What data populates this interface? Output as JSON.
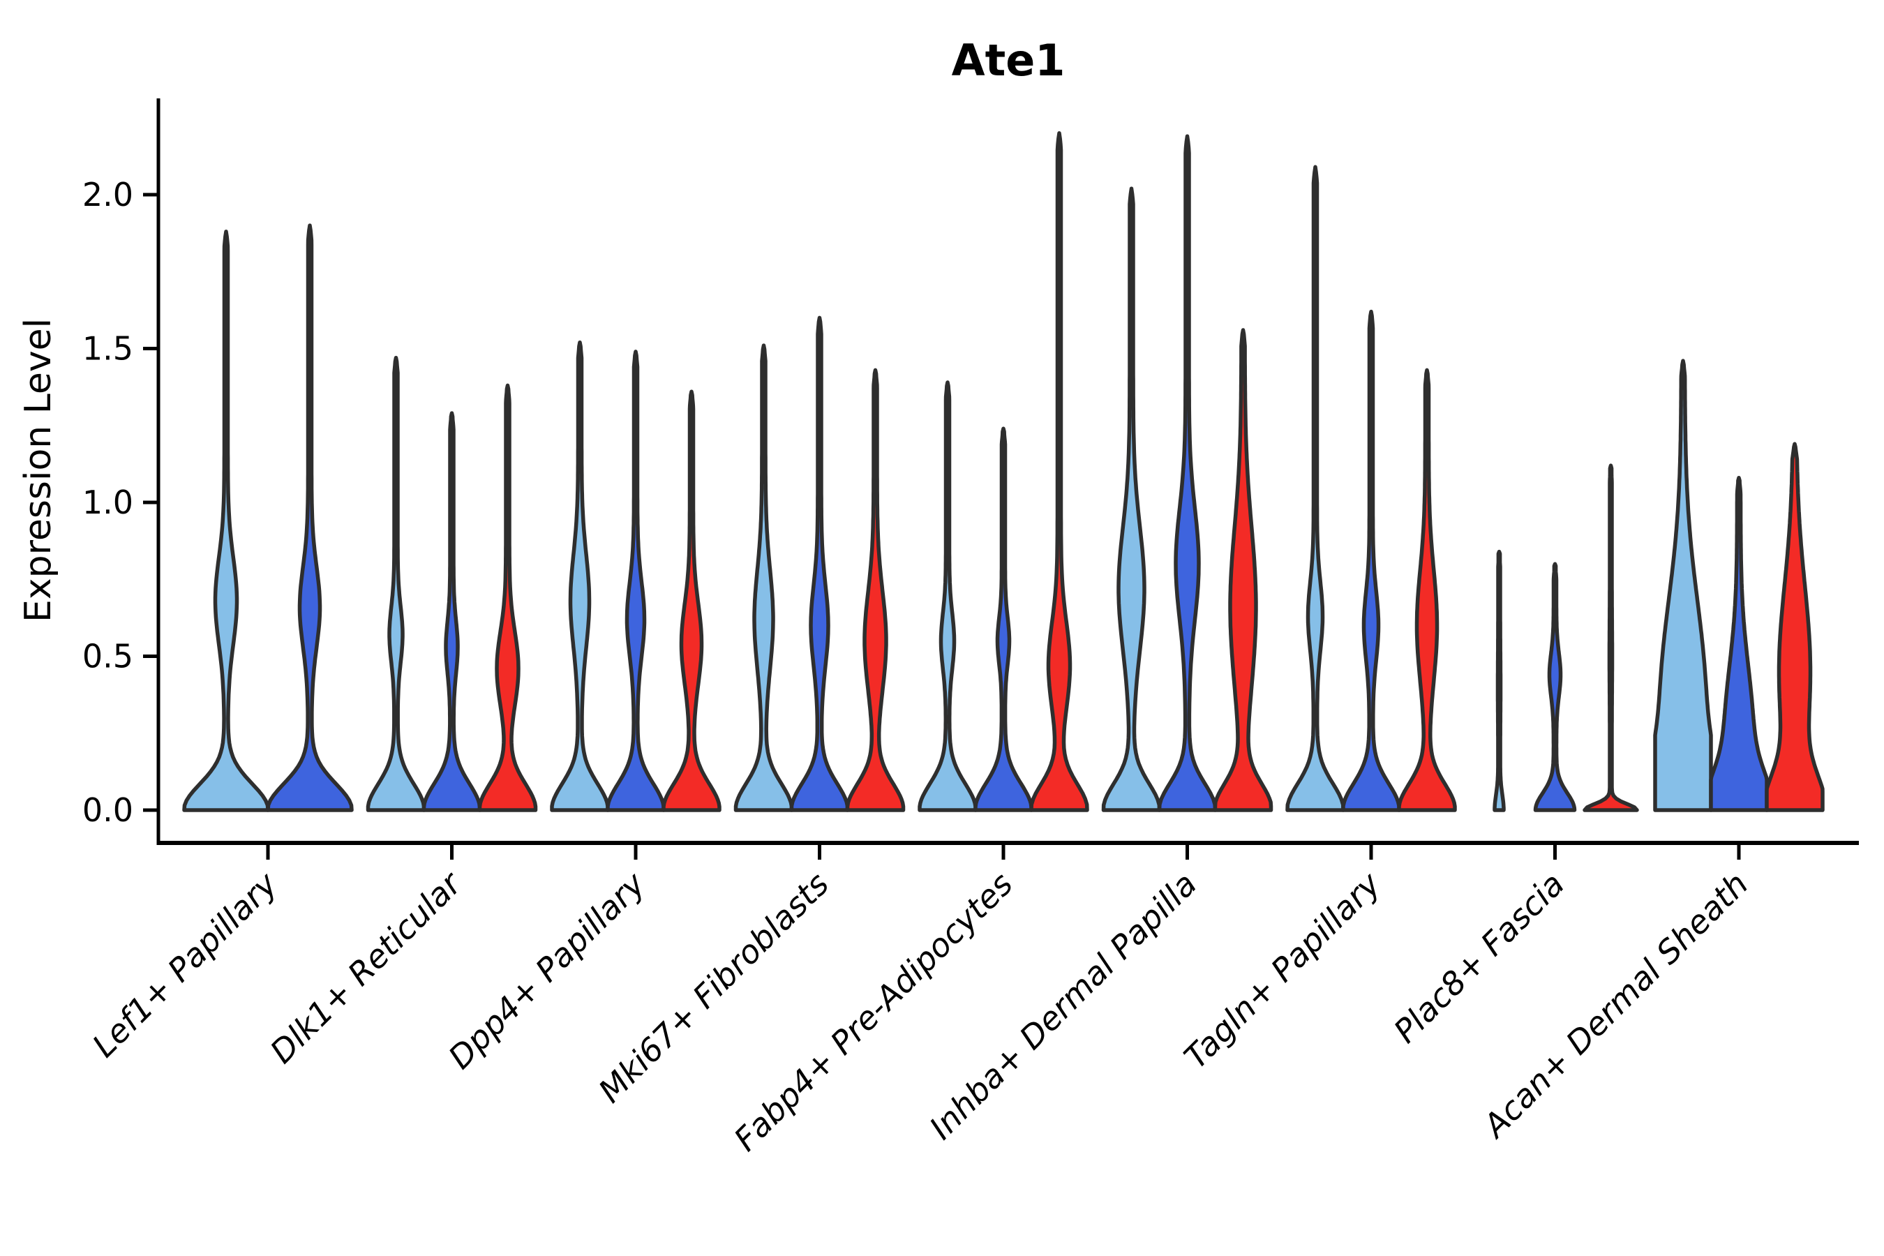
{
  "chart_data": {
    "type": "violin",
    "title": "Ate1",
    "ylabel": "Expression Level",
    "xlabel": "",
    "ylim": [
      0,
      2.31
    ],
    "yticks": [
      0.0,
      0.5,
      1.0,
      1.5,
      2.0
    ],
    "ytick_labels": [
      "0.0",
      "0.5",
      "1.0",
      "1.5",
      "2.0"
    ],
    "xtick_rotation": 45,
    "grid": false,
    "legend_position": "none",
    "colors": {
      "light_blue": "#86BFE8",
      "dark_blue": "#3E64DE",
      "red": "#F32B26",
      "outline": "#2E2E2E",
      "axis": "#000000"
    },
    "categories": [
      "Lef1+ Papillary",
      "Dlk1+ Reticular",
      "Dpp4+ Papillary",
      "Mki67+ Fibroblasts",
      "Fabp4+ Pre-Adipocytes",
      "Inhba+ Dermal Papilla",
      "Tagln+ Papillary",
      "Plac8+ Fascia",
      "Acan+ Dermal Sheath"
    ],
    "groups": [
      {
        "category": "Lef1+ Papillary",
        "violins": [
          {
            "color": "light_blue",
            "max": 1.88,
            "kde": {
              "bulge_center": 0.68,
              "bulge_sd": 0.14,
              "bulge_halfwidth": 13,
              "base_halfwidth": 58,
              "base_sd": 0.085,
              "stem_halfwidth": 2.5
            }
          },
          {
            "color": "dark_blue",
            "max": 1.9,
            "kde": {
              "bulge_center": 0.66,
              "bulge_sd": 0.13,
              "bulge_halfwidth": 12,
              "base_halfwidth": 58,
              "base_sd": 0.085,
              "stem_halfwidth": 2.5
            }
          }
        ]
      },
      {
        "category": "Dlk1+ Reticular",
        "violins": [
          {
            "color": "light_blue",
            "max": 1.47,
            "kde": {
              "bulge_center": 0.57,
              "bulge_sd": 0.09,
              "bulge_halfwidth": 7,
              "base_halfwidth": 38,
              "base_sd": 0.085,
              "stem_halfwidth": 2.5
            }
          },
          {
            "color": "dark_blue",
            "max": 1.29,
            "kde": {
              "bulge_center": 0.53,
              "bulge_sd": 0.085,
              "bulge_halfwidth": 6,
              "base_halfwidth": 38,
              "base_sd": 0.085,
              "stem_halfwidth": 2.5
            }
          },
          {
            "color": "red",
            "max": 1.38,
            "kde": {
              "bulge_center": 0.46,
              "bulge_sd": 0.12,
              "bulge_halfwidth": 13,
              "base_halfwidth": 38,
              "base_sd": 0.085,
              "stem_halfwidth": 2.5
            }
          }
        ]
      },
      {
        "category": "Dpp4+ Papillary",
        "violins": [
          {
            "color": "light_blue",
            "max": 1.52,
            "kde": {
              "bulge_center": 0.68,
              "bulge_sd": 0.15,
              "bulge_halfwidth": 11,
              "base_halfwidth": 38,
              "base_sd": 0.085,
              "stem_halfwidth": 2.5
            }
          },
          {
            "color": "dark_blue",
            "max": 1.49,
            "kde": {
              "bulge_center": 0.62,
              "bulge_sd": 0.12,
              "bulge_halfwidth": 10,
              "base_halfwidth": 38,
              "base_sd": 0.085,
              "stem_halfwidth": 2.5
            }
          },
          {
            "color": "red",
            "max": 1.36,
            "kde": {
              "bulge_center": 0.54,
              "bulge_sd": 0.13,
              "bulge_halfwidth": 12,
              "base_halfwidth": 38,
              "base_sd": 0.085,
              "stem_halfwidth": 2.5
            }
          }
        ]
      },
      {
        "category": "Mki67+ Fibroblasts",
        "violins": [
          {
            "color": "light_blue",
            "max": 1.51,
            "kde": {
              "bulge_center": 0.62,
              "bulge_sd": 0.16,
              "bulge_halfwidth": 11,
              "base_halfwidth": 38,
              "base_sd": 0.085,
              "stem_halfwidth": 2.5
            }
          },
          {
            "color": "dark_blue",
            "max": 1.6,
            "kde": {
              "bulge_center": 0.6,
              "bulge_sd": 0.13,
              "bulge_halfwidth": 10,
              "base_halfwidth": 38,
              "base_sd": 0.085,
              "stem_halfwidth": 2.5
            }
          },
          {
            "color": "red",
            "max": 1.43,
            "kde": {
              "bulge_center": 0.55,
              "bulge_sd": 0.16,
              "bulge_halfwidth": 13,
              "base_halfwidth": 38,
              "base_sd": 0.085,
              "stem_halfwidth": 2.5
            }
          }
        ]
      },
      {
        "category": "Fabp4+ Pre-Adipocytes",
        "violins": [
          {
            "color": "light_blue",
            "max": 1.39,
            "kde": {
              "bulge_center": 0.55,
              "bulge_sd": 0.09,
              "bulge_halfwidth": 7,
              "base_halfwidth": 38,
              "base_sd": 0.085,
              "stem_halfwidth": 2.5
            }
          },
          {
            "color": "dark_blue",
            "max": 1.24,
            "kde": {
              "bulge_center": 0.55,
              "bulge_sd": 0.075,
              "bulge_halfwidth": 6,
              "base_halfwidth": 38,
              "base_sd": 0.085,
              "stem_halfwidth": 2.5
            }
          },
          {
            "color": "red",
            "max": 2.2,
            "kde": {
              "bulge_center": 0.47,
              "bulge_sd": 0.14,
              "bulge_halfwidth": 13,
              "base_halfwidth": 38,
              "base_sd": 0.085,
              "stem_halfwidth": 2.5
            }
          }
        ]
      },
      {
        "category": "Inhba+ Dermal Papilla",
        "violins": [
          {
            "color": "light_blue",
            "max": 2.02,
            "kde": {
              "bulge_center": 0.72,
              "bulge_sd": 0.2,
              "bulge_halfwidth": 16,
              "base_halfwidth": 38,
              "base_sd": 0.085,
              "stem_halfwidth": 2.5
            }
          },
          {
            "color": "dark_blue",
            "max": 2.19,
            "kde": {
              "bulge_center": 0.8,
              "bulge_sd": 0.18,
              "bulge_halfwidth": 14,
              "base_halfwidth": 38,
              "base_sd": 0.085,
              "stem_halfwidth": 2.5
            }
          },
          {
            "color": "red",
            "max": 1.56,
            "kde": {
              "bulge_center": 0.66,
              "bulge_sd": 0.26,
              "bulge_halfwidth": 16,
              "base_halfwidth": 38,
              "base_sd": 0.085,
              "stem_halfwidth": 2.5
            }
          }
        ]
      },
      {
        "category": "Tagln+ Papillary",
        "violins": [
          {
            "color": "light_blue",
            "max": 2.09,
            "kde": {
              "bulge_center": 0.63,
              "bulge_sd": 0.11,
              "bulge_halfwidth": 8,
              "base_halfwidth": 38,
              "base_sd": 0.085,
              "stem_halfwidth": 2.5
            }
          },
          {
            "color": "dark_blue",
            "max": 1.62,
            "kde": {
              "bulge_center": 0.6,
              "bulge_sd": 0.11,
              "bulge_halfwidth": 8,
              "base_halfwidth": 38,
              "base_sd": 0.085,
              "stem_halfwidth": 2.5
            }
          },
          {
            "color": "red",
            "max": 1.43,
            "kde": {
              "bulge_center": 0.6,
              "bulge_sd": 0.18,
              "bulge_halfwidth": 12,
              "base_halfwidth": 38,
              "base_sd": 0.085,
              "stem_halfwidth": 2.5
            }
          }
        ]
      },
      {
        "category": "Plac8+ Fascia",
        "violins": [
          {
            "color": "light_blue",
            "max": 0.84,
            "kde": {
              "bulge_center": 0.4,
              "bulge_sd": 0.1,
              "bulge_halfwidth": 0.5,
              "base_halfwidth": 5,
              "base_sd": 0.05,
              "stem_halfwidth": 1.5
            }
          },
          {
            "color": "dark_blue",
            "max": 0.8,
            "kde": {
              "bulge_center": 0.44,
              "bulge_sd": 0.07,
              "bulge_halfwidth": 6,
              "base_halfwidth": 26,
              "base_sd": 0.055,
              "stem_halfwidth": 2.0
            }
          },
          {
            "color": "red",
            "max": 1.12,
            "kde": {
              "bulge_center": 0.5,
              "bulge_sd": 0.1,
              "bulge_halfwidth": 0.5,
              "base_halfwidth": 36,
              "base_sd": 0.02,
              "stem_halfwidth": 1.5
            }
          }
        ]
      },
      {
        "category": "Acan+ Dermal Sheath",
        "violins": [
          {
            "color": "light_blue",
            "max": 1.46,
            "kde": {
              "bulge_center": 0.35,
              "bulge_sd": 0.33,
              "bulge_halfwidth": 30,
              "base_halfwidth": 34,
              "base_sd": 0.15,
              "stem_halfwidth": 2.5
            }
          },
          {
            "color": "dark_blue",
            "max": 1.08,
            "kde": {
              "bulge_center": 0.25,
              "bulge_sd": 0.22,
              "bulge_halfwidth": 18,
              "base_halfwidth": 36,
              "base_sd": 0.11,
              "stem_halfwidth": 2.5
            }
          },
          {
            "color": "red",
            "max": 1.19,
            "kde": {
              "bulge_center": 0.45,
              "bulge_sd": 0.28,
              "bulge_halfwidth": 20,
              "base_halfwidth": 36,
              "base_sd": 0.11,
              "stem_halfwidth": 2.5
            }
          }
        ]
      }
    ]
  }
}
